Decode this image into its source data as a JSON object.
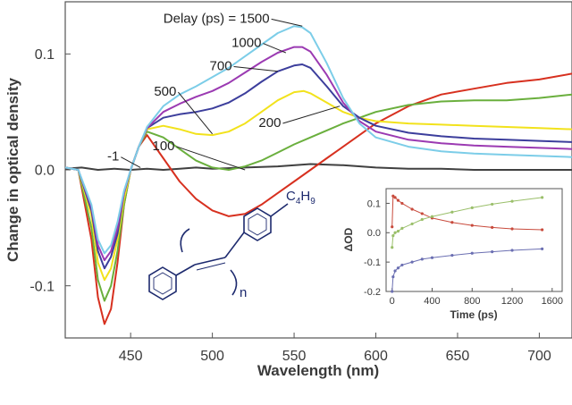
{
  "chart_data": [
    {
      "type": "line",
      "xlabel": "Wavelength (nm)",
      "ylabel": "Change in optical density",
      "xlim": [
        410,
        720
      ],
      "ylim": [
        -0.145,
        0.145
      ],
      "xticks": [
        450,
        500,
        550,
        600,
        650,
        700
      ],
      "yticks": [
        -0.1,
        0.0,
        0.1
      ],
      "ytick_labels": [
        "-0.1",
        "0.0",
        "0.1"
      ],
      "grid": false,
      "series": [
        {
          "name": "-1",
          "color": "#404040",
          "x": [
            410,
            420,
            430,
            440,
            450,
            460,
            470,
            480,
            490,
            500,
            520,
            540,
            560,
            580,
            600,
            620,
            640,
            660,
            680,
            700,
            720
          ],
          "y": [
            0.001,
            0.002,
            0.0,
            0.001,
            0.0,
            0.001,
            0.0,
            0.001,
            0.002,
            0.001,
            0.002,
            0.003,
            0.005,
            0.004,
            0.002,
            0.001,
            0.001,
            0.0,
            0.0,
            0.0,
            0.0
          ]
        },
        {
          "name": "100",
          "color": "#d7301f",
          "x": [
            410,
            418,
            426,
            430,
            434,
            438,
            442,
            446,
            450,
            455,
            460,
            470,
            480,
            490,
            500,
            510,
            520,
            530,
            540,
            550,
            560,
            570,
            580,
            590,
            600,
            620,
            640,
            660,
            680,
            700,
            720
          ],
          "y": [
            0.002,
            0.0,
            -0.06,
            -0.11,
            -0.133,
            -0.12,
            -0.08,
            -0.03,
            0.0,
            0.02,
            0.03,
            0.01,
            -0.01,
            -0.025,
            -0.035,
            -0.04,
            -0.038,
            -0.03,
            -0.02,
            -0.01,
            0.0,
            0.01,
            0.02,
            0.03,
            0.04,
            0.055,
            0.065,
            0.07,
            0.075,
            0.078,
            0.083
          ]
        },
        {
          "name": "200",
          "color": "#6aaf3d",
          "x": [
            410,
            418,
            426,
            430,
            434,
            438,
            442,
            446,
            450,
            455,
            460,
            470,
            480,
            490,
            500,
            510,
            520,
            530,
            540,
            550,
            560,
            570,
            580,
            590,
            600,
            620,
            640,
            660,
            680,
            700,
            720
          ],
          "y": [
            0.002,
            0.0,
            -0.05,
            -0.095,
            -0.113,
            -0.1,
            -0.07,
            -0.03,
            0.0,
            0.02,
            0.033,
            0.028,
            0.018,
            0.008,
            0.002,
            0.0,
            0.003,
            0.008,
            0.015,
            0.022,
            0.028,
            0.034,
            0.04,
            0.045,
            0.05,
            0.056,
            0.059,
            0.06,
            0.06,
            0.062,
            0.065
          ]
        },
        {
          "name": "500",
          "color": "#f2e21c",
          "x": [
            410,
            418,
            426,
            430,
            434,
            438,
            442,
            446,
            450,
            455,
            460,
            470,
            480,
            490,
            500,
            510,
            520,
            530,
            540,
            550,
            556,
            560,
            570,
            580,
            590,
            600,
            620,
            640,
            660,
            680,
            700,
            720
          ],
          "y": [
            0.002,
            0.0,
            -0.04,
            -0.08,
            -0.095,
            -0.085,
            -0.06,
            -0.025,
            0.0,
            0.02,
            0.035,
            0.038,
            0.035,
            0.031,
            0.03,
            0.033,
            0.04,
            0.05,
            0.06,
            0.067,
            0.068,
            0.066,
            0.058,
            0.05,
            0.045,
            0.042,
            0.04,
            0.039,
            0.038,
            0.037,
            0.036,
            0.035
          ]
        },
        {
          "name": "700",
          "color": "#3c3e9c",
          "x": [
            410,
            418,
            426,
            430,
            434,
            438,
            442,
            446,
            450,
            455,
            460,
            470,
            480,
            490,
            500,
            510,
            520,
            530,
            540,
            550,
            555,
            560,
            570,
            580,
            590,
            600,
            620,
            640,
            660,
            680,
            700,
            720
          ],
          "y": [
            0.002,
            0.0,
            -0.035,
            -0.07,
            -0.085,
            -0.075,
            -0.055,
            -0.02,
            0.0,
            0.02,
            0.036,
            0.045,
            0.048,
            0.05,
            0.053,
            0.058,
            0.066,
            0.076,
            0.085,
            0.09,
            0.091,
            0.088,
            0.072,
            0.055,
            0.045,
            0.038,
            0.032,
            0.029,
            0.027,
            0.026,
            0.025,
            0.024
          ]
        },
        {
          "name": "1000",
          "color": "#9b3ab2",
          "x": [
            410,
            418,
            426,
            430,
            434,
            438,
            442,
            446,
            450,
            455,
            460,
            470,
            480,
            490,
            500,
            510,
            520,
            530,
            540,
            550,
            555,
            560,
            570,
            580,
            590,
            600,
            620,
            640,
            660,
            680,
            700,
            720
          ],
          "y": [
            0.002,
            0.0,
            -0.032,
            -0.065,
            -0.078,
            -0.07,
            -0.05,
            -0.02,
            0.0,
            0.02,
            0.036,
            0.05,
            0.057,
            0.063,
            0.068,
            0.075,
            0.084,
            0.093,
            0.101,
            0.106,
            0.106,
            0.102,
            0.082,
            0.058,
            0.042,
            0.033,
            0.026,
            0.023,
            0.021,
            0.02,
            0.019,
            0.018
          ]
        },
        {
          "name": "1500",
          "color": "#7ccde8",
          "x": [
            410,
            418,
            426,
            430,
            434,
            438,
            442,
            446,
            450,
            455,
            460,
            470,
            480,
            490,
            500,
            510,
            520,
            530,
            540,
            550,
            555,
            560,
            570,
            580,
            590,
            600,
            620,
            640,
            660,
            680,
            700,
            720
          ],
          "y": [
            0.002,
            0.0,
            -0.03,
            -0.06,
            -0.072,
            -0.065,
            -0.045,
            -0.018,
            0.0,
            0.02,
            0.037,
            0.055,
            0.065,
            0.072,
            0.08,
            0.088,
            0.098,
            0.108,
            0.118,
            0.124,
            0.123,
            0.118,
            0.092,
            0.062,
            0.04,
            0.028,
            0.02,
            0.016,
            0.014,
            0.013,
            0.012,
            0.011
          ]
        }
      ],
      "annotations": [
        {
          "text": "Delay (ps) = 1500",
          "x": 535,
          "y": 0.127
        },
        {
          "text": "1000",
          "x": 512,
          "y": 0.103
        },
        {
          "text": "700",
          "x": 506,
          "y": 0.082
        },
        {
          "text": "500",
          "x": 470,
          "y": 0.062
        },
        {
          "text": "200",
          "x": 550,
          "y": 0.04
        },
        {
          "text": "100",
          "x": 483,
          "y": 0.02
        },
        {
          "text": "-1",
          "x": 448,
          "y": 0.01
        }
      ]
    },
    {
      "type": "line",
      "xlabel": "Time (ps)",
      "ylabel": "ΔOD",
      "xlim": [
        -60,
        1700
      ],
      "ylim": [
        -0.2,
        0.15
      ],
      "xticks": [
        0,
        400,
        800,
        1200,
        1600
      ],
      "yticks": [
        -0.2,
        -0.1,
        0.0,
        0.1
      ],
      "ytick_labels": [
        "-0.2",
        "-0.1",
        "0.0",
        "0.1"
      ],
      "grid": false,
      "series": [
        {
          "color": "#c84a3c",
          "x": [
            0,
            10,
            30,
            60,
            100,
            200,
            300,
            400,
            600,
            800,
            1000,
            1200,
            1500
          ],
          "y": [
            0.02,
            0.125,
            0.12,
            0.11,
            0.1,
            0.08,
            0.065,
            0.05,
            0.035,
            0.025,
            0.018,
            0.013,
            0.01
          ]
        },
        {
          "color": "#9abf6a",
          "x": [
            0,
            10,
            30,
            60,
            100,
            200,
            300,
            400,
            600,
            800,
            1000,
            1200,
            1500
          ],
          "y": [
            -0.05,
            -0.01,
            0.0,
            0.005,
            0.015,
            0.03,
            0.045,
            0.055,
            0.07,
            0.085,
            0.097,
            0.107,
            0.12
          ]
        },
        {
          "color": "#6b6fb2",
          "x": [
            0,
            10,
            30,
            60,
            100,
            200,
            300,
            400,
            600,
            800,
            1000,
            1200,
            1500
          ],
          "y": [
            -0.2,
            -0.15,
            -0.13,
            -0.12,
            -0.11,
            -0.1,
            -0.09,
            -0.085,
            -0.077,
            -0.07,
            -0.065,
            -0.06,
            -0.055
          ]
        }
      ]
    }
  ],
  "structure": {
    "substituent": "C",
    "substituent_sub1": "4",
    "substituent_mid": "H",
    "substituent_sub2": "9",
    "repeat": "n"
  }
}
